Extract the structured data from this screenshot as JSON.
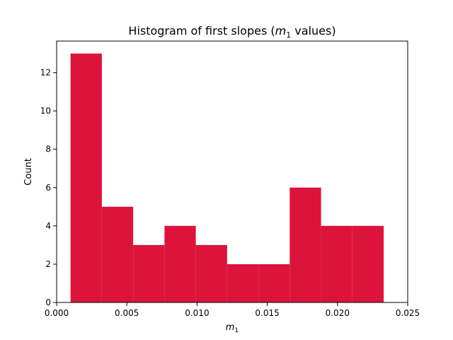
{
  "chart_data": {
    "type": "bar",
    "title_main": "Histogram of first slopes (",
    "title_var": "m",
    "title_sub": "1",
    "title_end": " values)",
    "xlabel_var": "m",
    "xlabel_sub": "1",
    "ylabel": "Count",
    "xlim": [
      0.0,
      0.025
    ],
    "ylim": [
      0,
      13.65
    ],
    "xticks": [
      0.0,
      0.005,
      0.01,
      0.015,
      0.02,
      0.025
    ],
    "xtick_labels": [
      "0.000",
      "0.005",
      "0.010",
      "0.015",
      "0.020",
      "0.025"
    ],
    "yticks": [
      0,
      2,
      4,
      6,
      8,
      10,
      12
    ],
    "ytick_labels": [
      "0",
      "2",
      "4",
      "6",
      "8",
      "10",
      "12"
    ],
    "bin_edges": [
      0.00099,
      0.00322,
      0.00545,
      0.00768,
      0.00991,
      0.01214,
      0.01437,
      0.0166,
      0.01883,
      0.02106,
      0.02329
    ],
    "values": [
      13,
      5,
      3,
      4,
      3,
      2,
      2,
      6,
      4,
      4
    ],
    "bar_color": "#dc143c",
    "grid": false,
    "legend": "none"
  }
}
